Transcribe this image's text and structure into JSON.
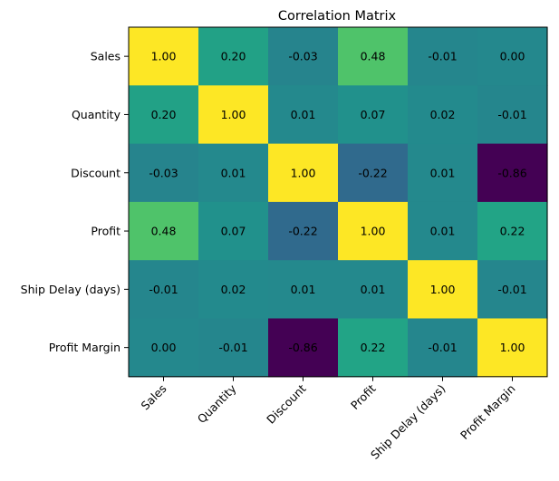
{
  "chart_data": {
    "type": "heatmap",
    "title": "Correlation Matrix",
    "xlabel": "",
    "ylabel": "",
    "colormap": "viridis",
    "vmin": -0.86,
    "vmax": 1.0,
    "grid": false,
    "legend": "none",
    "x_categories": [
      "Sales",
      "Quantity",
      "Discount",
      "Profit",
      "Ship Delay (days)",
      "Profit Margin"
    ],
    "y_categories": [
      "Sales",
      "Quantity",
      "Discount",
      "Profit",
      "Ship Delay (days)",
      "Profit Margin"
    ],
    "values": [
      [
        1.0,
        0.2,
        -0.03,
        0.48,
        -0.01,
        0.0
      ],
      [
        0.2,
        1.0,
        0.01,
        0.07,
        0.02,
        -0.01
      ],
      [
        -0.03,
        0.01,
        1.0,
        -0.22,
        0.01,
        -0.86
      ],
      [
        0.48,
        0.07,
        -0.22,
        1.0,
        0.01,
        0.22
      ],
      [
        -0.01,
        0.02,
        0.01,
        0.01,
        1.0,
        -0.01
      ],
      [
        0.0,
        -0.01,
        -0.86,
        0.22,
        -0.01,
        1.0
      ]
    ],
    "cell_labels": [
      [
        "1.00",
        "0.20",
        "-0.03",
        "0.48",
        "-0.01",
        "0.00"
      ],
      [
        "0.20",
        "1.00",
        "0.01",
        "0.07",
        "0.02",
        "-0.01"
      ],
      [
        "-0.03",
        "0.01",
        "1.00",
        "-0.22",
        "0.01",
        "-0.86"
      ],
      [
        "0.48",
        "0.07",
        "-0.22",
        "1.00",
        "0.01",
        "0.22"
      ],
      [
        "-0.01",
        "0.02",
        "0.01",
        "0.01",
        "1.00",
        "-0.01"
      ],
      [
        "0.00",
        "-0.01",
        "-0.86",
        "0.22",
        "-0.01",
        "1.00"
      ]
    ]
  }
}
